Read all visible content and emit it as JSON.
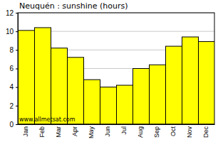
{
  "chart_data": {
    "type": "bar",
    "title": "Neuquén : sunshine (hours)",
    "categories": [
      "Jan",
      "Feb",
      "Mar",
      "Apr",
      "May",
      "Jun",
      "Jul",
      "Aug",
      "Sep",
      "Oct",
      "Nov",
      "Dec"
    ],
    "values": [
      10.1,
      10.4,
      8.2,
      7.2,
      4.8,
      4.0,
      4.2,
      6.0,
      6.4,
      8.4,
      9.4,
      8.9
    ],
    "color": "#ffff00",
    "ylim": [
      0,
      12
    ],
    "yticks": [
      0,
      2,
      4,
      6,
      8,
      10,
      12
    ],
    "grid": true,
    "annotations": [
      "www.allmetsat.com"
    ]
  }
}
